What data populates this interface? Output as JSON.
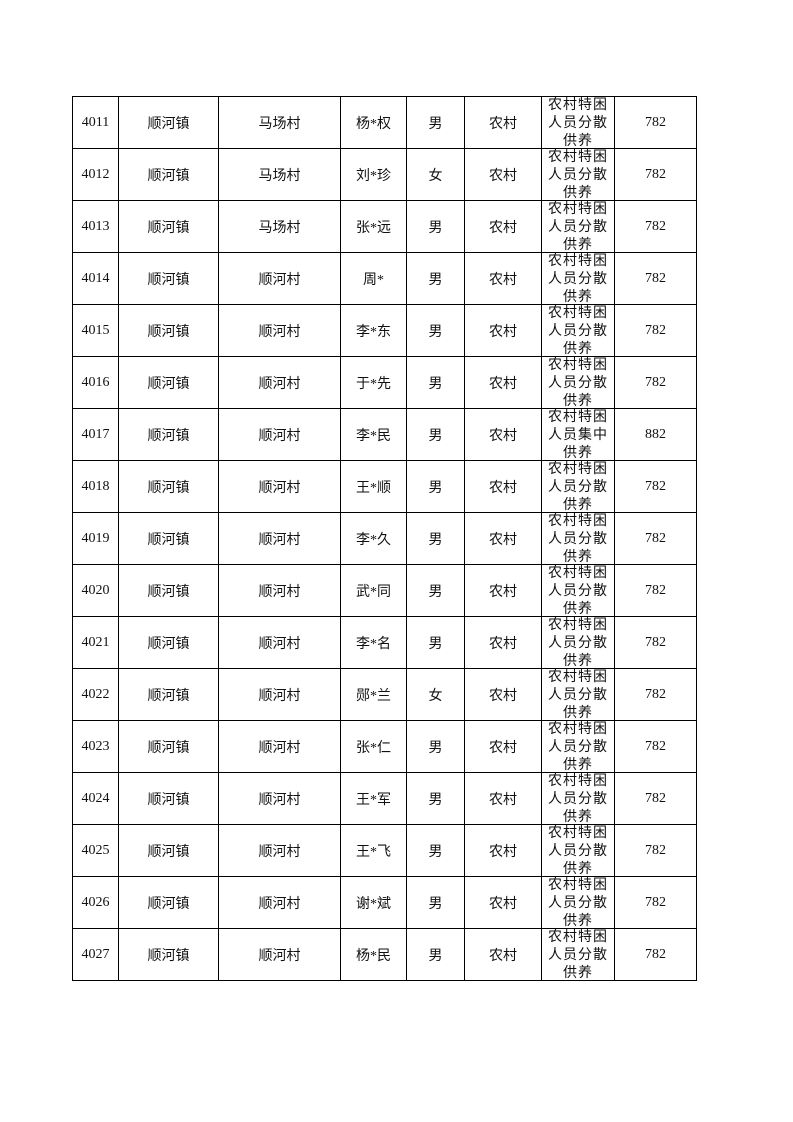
{
  "rows": [
    {
      "no": "4011",
      "town": "顺河镇",
      "village": "马场村",
      "name": "杨*权",
      "gender": "男",
      "residence": "农村",
      "type": "农村特困人员分散供养",
      "amount": "782"
    },
    {
      "no": "4012",
      "town": "顺河镇",
      "village": "马场村",
      "name": "刘*珍",
      "gender": "女",
      "residence": "农村",
      "type": "农村特困人员分散供养",
      "amount": "782"
    },
    {
      "no": "4013",
      "town": "顺河镇",
      "village": "马场村",
      "name": "张*远",
      "gender": "男",
      "residence": "农村",
      "type": "农村特困人员分散供养",
      "amount": "782"
    },
    {
      "no": "4014",
      "town": "顺河镇",
      "village": "顺河村",
      "name": "周*",
      "gender": "男",
      "residence": "农村",
      "type": "农村特困人员分散供养",
      "amount": "782"
    },
    {
      "no": "4015",
      "town": "顺河镇",
      "village": "顺河村",
      "name": "李*东",
      "gender": "男",
      "residence": "农村",
      "type": "农村特困人员分散供养",
      "amount": "782"
    },
    {
      "no": "4016",
      "town": "顺河镇",
      "village": "顺河村",
      "name": "于*先",
      "gender": "男",
      "residence": "农村",
      "type": "农村特困人员分散供养",
      "amount": "782"
    },
    {
      "no": "4017",
      "town": "顺河镇",
      "village": "顺河村",
      "name": "李*民",
      "gender": "男",
      "residence": "农村",
      "type": "农村特困人员集中供养",
      "amount": "882"
    },
    {
      "no": "4018",
      "town": "顺河镇",
      "village": "顺河村",
      "name": "王*顺",
      "gender": "男",
      "residence": "农村",
      "type": "农村特困人员分散供养",
      "amount": "782"
    },
    {
      "no": "4019",
      "town": "顺河镇",
      "village": "顺河村",
      "name": "李*久",
      "gender": "男",
      "residence": "农村",
      "type": "农村特困人员分散供养",
      "amount": "782"
    },
    {
      "no": "4020",
      "town": "顺河镇",
      "village": "顺河村",
      "name": "武*同",
      "gender": "男",
      "residence": "农村",
      "type": "农村特困人员分散供养",
      "amount": "782"
    },
    {
      "no": "4021",
      "town": "顺河镇",
      "village": "顺河村",
      "name": "李*名",
      "gender": "男",
      "residence": "农村",
      "type": "农村特困人员分散供养",
      "amount": "782"
    },
    {
      "no": "4022",
      "town": "顺河镇",
      "village": "顺河村",
      "name": "郧*兰",
      "gender": "女",
      "residence": "农村",
      "type": "农村特困人员分散供养",
      "amount": "782"
    },
    {
      "no": "4023",
      "town": "顺河镇",
      "village": "顺河村",
      "name": "张*仁",
      "gender": "男",
      "residence": "农村",
      "type": "农村特困人员分散供养",
      "amount": "782"
    },
    {
      "no": "4024",
      "town": "顺河镇",
      "village": "顺河村",
      "name": "王*军",
      "gender": "男",
      "residence": "农村",
      "type": "农村特困人员分散供养",
      "amount": "782"
    },
    {
      "no": "4025",
      "town": "顺河镇",
      "village": "顺河村",
      "name": "王*飞",
      "gender": "男",
      "residence": "农村",
      "type": "农村特困人员分散供养",
      "amount": "782"
    },
    {
      "no": "4026",
      "town": "顺河镇",
      "village": "顺河村",
      "name": "谢*斌",
      "gender": "男",
      "residence": "农村",
      "type": "农村特困人员分散供养",
      "amount": "782"
    },
    {
      "no": "4027",
      "town": "顺河镇",
      "village": "顺河村",
      "name": "杨*民",
      "gender": "男",
      "residence": "农村",
      "type": "农村特困人员分散供养",
      "amount": "782"
    }
  ]
}
